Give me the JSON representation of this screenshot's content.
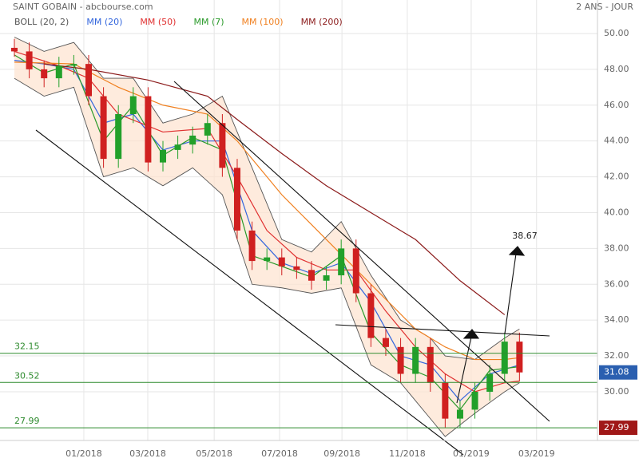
{
  "chart_data": {
    "type": "candlestick",
    "title": "SAINT GOBAIN - abcbourse.com",
    "subtitle": "2 ANS - JOUR",
    "xlim": [
      0,
      78.5
    ],
    "ylim": [
      27.37,
      51.87
    ],
    "xticks": [
      {
        "value": 9.35,
        "label": "01/2018"
      },
      {
        "value": 17.96,
        "label": "03/2018"
      },
      {
        "value": 26.9,
        "label": "05/2018"
      },
      {
        "value": 35.7,
        "label": "07/2018"
      },
      {
        "value": 44.1,
        "label": "09/2018"
      },
      {
        "value": 52.9,
        "label": "11/2018"
      },
      {
        "value": 61.5,
        "label": "01/2019"
      },
      {
        "value": 70.3,
        "label": "03/2019"
      }
    ],
    "yticks": [
      {
        "value": 30,
        "label": "30.00"
      },
      {
        "value": 32,
        "label": "32.00"
      },
      {
        "value": 34,
        "label": "34.00"
      },
      {
        "value": 36,
        "label": "36.00"
      },
      {
        "value": 38,
        "label": "38.00"
      },
      {
        "value": 40,
        "label": "40.00"
      },
      {
        "value": 42,
        "label": "42.00"
      },
      {
        "value": 44,
        "label": "44.00"
      },
      {
        "value": 46,
        "label": "46.00"
      },
      {
        "value": 48,
        "label": "48.00"
      },
      {
        "value": 50,
        "label": "50.00"
      }
    ],
    "grid": true,
    "up_color": "#22a02a",
    "down_color": "#d02020",
    "candles": {
      "x": [
        0,
        2,
        4,
        6,
        8,
        10,
        12,
        14,
        16,
        18,
        20,
        22,
        24,
        26,
        28,
        30,
        32,
        34,
        36,
        38,
        40,
        42,
        44,
        46,
        48,
        50,
        52,
        54,
        56,
        58,
        60,
        62,
        64,
        66,
        68
      ],
      "open": [
        49.2,
        49.0,
        48.0,
        47.5,
        48.2,
        48.3,
        46.5,
        43.0,
        45.5,
        46.5,
        42.8,
        43.5,
        43.8,
        44.3,
        45.0,
        42.5,
        39.0,
        37.3,
        37.5,
        37.0,
        36.8,
        36.2,
        36.5,
        38.0,
        35.5,
        33.0,
        32.5,
        31.0,
        32.5,
        30.5,
        28.5,
        29.0,
        30.0,
        31.0,
        32.8
      ],
      "high": [
        49.7,
        49.5,
        48.5,
        48.7,
        48.8,
        48.8,
        47.0,
        46.0,
        47.0,
        47.0,
        44.0,
        44.3,
        44.8,
        45.5,
        45.5,
        43.0,
        39.5,
        38.0,
        38.0,
        37.5,
        37.3,
        37.0,
        38.5,
        38.5,
        36.0,
        33.5,
        33.0,
        33.0,
        33.0,
        31.0,
        29.5,
        30.5,
        31.5,
        33.3,
        33.3
      ],
      "low": [
        48.7,
        47.5,
        47.0,
        47.0,
        47.7,
        46.0,
        42.5,
        42.5,
        45.0,
        42.3,
        42.3,
        43.0,
        43.3,
        43.8,
        42.0,
        38.5,
        36.8,
        36.8,
        36.5,
        36.3,
        35.7,
        35.7,
        36.0,
        35.0,
        32.5,
        32.0,
        30.5,
        30.5,
        30.0,
        28.0,
        28.0,
        28.5,
        29.5,
        30.5,
        30.58
      ],
      "close": [
        49.0,
        48.0,
        47.5,
        48.2,
        48.3,
        46.5,
        43.0,
        45.5,
        46.5,
        42.8,
        43.5,
        43.8,
        44.3,
        45.0,
        42.5,
        39.0,
        37.3,
        37.5,
        37.0,
        36.8,
        36.2,
        36.5,
        38.0,
        35.5,
        33.0,
        32.5,
        31.0,
        32.5,
        30.5,
        28.5,
        29.0,
        30.0,
        31.0,
        32.8,
        31.08
      ]
    },
    "bollinger": {
      "name": "BOLL (20, 2)",
      "color": "#555555",
      "fill": "#fde3cf",
      "x": [
        0,
        4,
        8,
        12,
        16,
        20,
        24,
        28,
        32,
        36,
        40,
        44,
        48,
        52,
        56,
        58,
        62,
        66,
        68
      ],
      "upper": [
        49.8,
        49.0,
        49.5,
        47.5,
        47.5,
        45.0,
        45.5,
        46.5,
        42.5,
        38.5,
        37.8,
        39.5,
        36.5,
        34.0,
        33.0,
        32.0,
        31.8,
        33.0,
        33.5
      ],
      "lower": [
        47.5,
        46.5,
        47.0,
        42.0,
        42.5,
        41.5,
        42.5,
        41.0,
        36.0,
        35.8,
        35.5,
        35.8,
        31.5,
        30.5,
        28.5,
        27.5,
        28.8,
        30.0,
        30.5
      ]
    },
    "series": [
      {
        "name": "MM (20)",
        "color": "#3366dd",
        "x": [
          0,
          4,
          8,
          12,
          16,
          20,
          24,
          28,
          32,
          36,
          40,
          44,
          48,
          52,
          56,
          60,
          64,
          68
        ],
        "values": [
          48.5,
          48.3,
          48.0,
          45.0,
          45.5,
          43.5,
          44.0,
          44.0,
          39.0,
          37.2,
          36.6,
          37.2,
          35.0,
          32.0,
          31.5,
          29.5,
          31.0,
          31.5
        ]
      },
      {
        "name": "MM (50)",
        "color": "#e03030",
        "x": [
          0,
          6,
          10,
          14,
          20,
          26,
          30,
          34,
          38,
          42,
          46,
          50,
          54,
          58,
          62,
          66,
          68
        ],
        "values": [
          49.0,
          48.2,
          47.5,
          45.5,
          44.5,
          44.7,
          42.0,
          39.0,
          37.5,
          36.8,
          36.8,
          34.5,
          32.5,
          31.0,
          30.0,
          30.5,
          30.6
        ]
      },
      {
        "name": "MM (7)",
        "color": "#2a9a2a",
        "x": [
          0,
          4,
          8,
          12,
          16,
          20,
          24,
          28,
          32,
          36,
          40,
          44,
          48,
          52,
          56,
          60,
          64,
          68
        ],
        "values": [
          48.8,
          47.8,
          48.3,
          44.0,
          46.0,
          43.2,
          44.2,
          43.5,
          37.6,
          37.0,
          36.4,
          37.6,
          33.3,
          31.5,
          30.8,
          29.0,
          31.2,
          31.4
        ]
      },
      {
        "name": "MM (100)",
        "color": "#f08020",
        "x": [
          0,
          8,
          14,
          20,
          26,
          30,
          36,
          42,
          48,
          54,
          58,
          62,
          66,
          68
        ],
        "values": [
          48.4,
          48.3,
          47.0,
          46.0,
          45.5,
          44.0,
          41.0,
          38.5,
          36.0,
          33.5,
          32.5,
          31.8,
          31.8,
          31.9
        ]
      },
      {
        "name": "MM (200)",
        "color": "#8b1a1a",
        "x": [
          4,
          10,
          18,
          26,
          30,
          36,
          42,
          48,
          54,
          60,
          66
        ],
        "values": [
          48.3,
          48.0,
          47.4,
          46.5,
          45.2,
          43.3,
          41.5,
          40.0,
          38.5,
          36.2,
          34.3
        ]
      }
    ],
    "levels": [
      32.15,
      30.52,
      27.99
    ],
    "level_color": "#2e8b2e",
    "last_price": 31.08,
    "annotation": "38.67"
  }
}
